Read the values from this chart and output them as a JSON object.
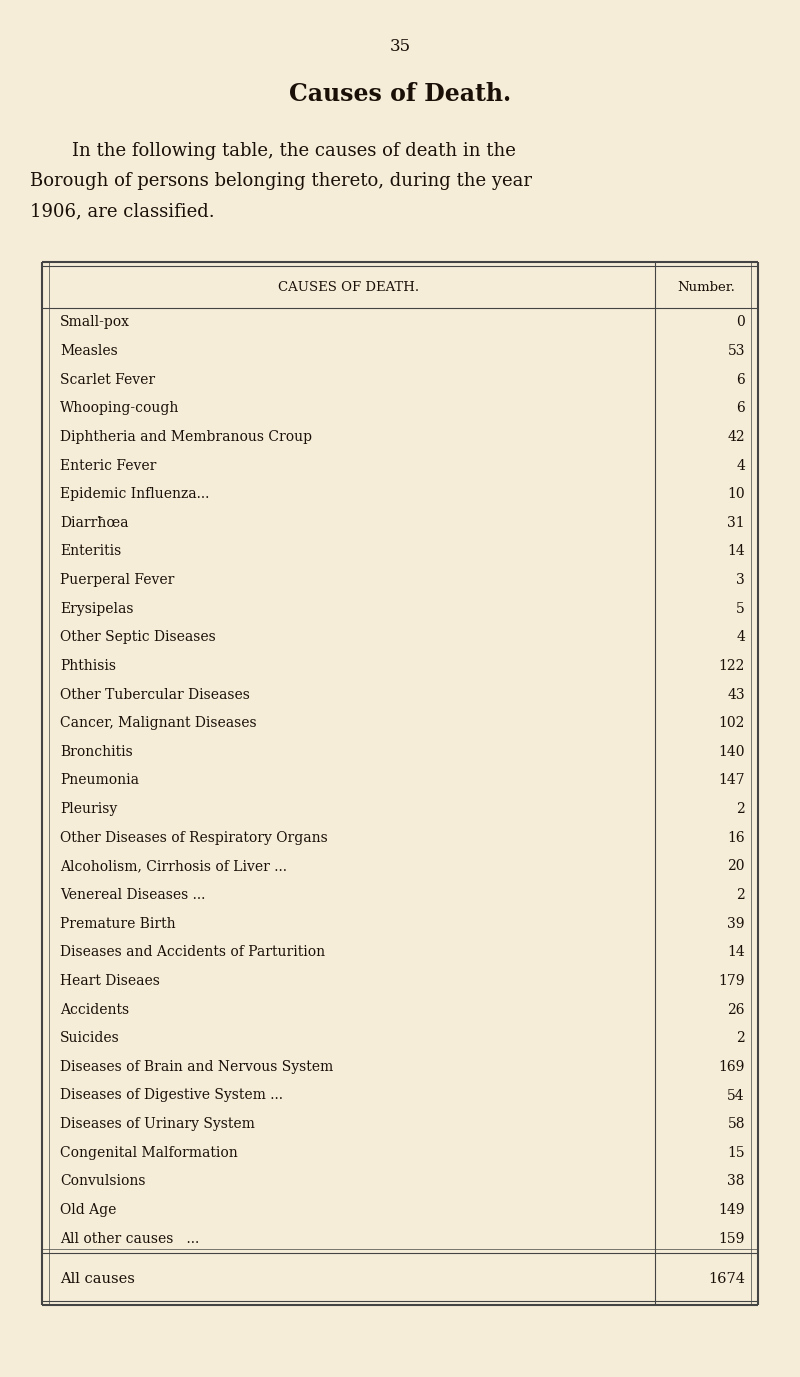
{
  "page_number": "35",
  "title": "Causes of Death.",
  "intro_text_line1": "In the following table, the causes of death in the",
  "intro_text_line2": "Borough of persons belonging thereto, during the year",
  "intro_text_line3": "1906, are classified.",
  "col_header_left": "CAUSES OF DEATH.",
  "col_header_right": "Number.",
  "rows": [
    {
      "cause": "Small-pox",
      "trail": "   ...          ...          ...",
      "tail": "  .",
      "number": "0"
    },
    {
      "cause": "Measles",
      "trail": "      ...          ...          ...",
      "tail": "  .",
      "number": "53"
    },
    {
      "cause": "Scarlet Fever",
      "trail": "    ...          ...          ...",
      "tail": "",
      "number": "6"
    },
    {
      "cause": "Whooping-cough",
      "trail": "  ...          ...          ...",
      "tail": "  .",
      "number": "6"
    },
    {
      "cause": "Diphtheria and Membranous Croup",
      "trail": "     ...",
      "tail": "  .",
      "number": "42"
    },
    {
      "cause": "Enteric Fever",
      "trail": "    ...          ...          ...",
      "tail": "  .",
      "number": "4"
    },
    {
      "cause": "Epidemic Influenza...",
      "trail": "         ...          ...",
      "tail": "  .",
      "number": "10"
    },
    {
      "cause": "Diarrħœa",
      "trail": "       ...          ...          ...",
      "tail": " ...",
      "number": "31"
    },
    {
      "cause": "Enteritis",
      "trail": "      ...          ...          ...",
      "tail": " ...",
      "number": "14"
    },
    {
      "cause": "Puerperal Fever",
      "trail": "  ...          ...          ...",
      "tail": " ...",
      "number": "3"
    },
    {
      "cause": "Erysipelas",
      "trail": "     ...          ...          ...",
      "tail": "",
      "number": "5"
    },
    {
      "cause": "Other Septic Diseases",
      "trail": "  ...          ...",
      "tail": "",
      "number": "4"
    },
    {
      "cause": "Phthisis",
      "trail": "       ...          ...          ...",
      "tail": "  .",
      "number": "122"
    },
    {
      "cause": "Other Tubercular Diseases",
      "trail": "   ...          ...",
      "tail": "",
      "number": "43"
    },
    {
      "cause": "Cancer, Malignant Diseases",
      "trail": "  ...",
      "tail": "  .",
      "number": "102"
    },
    {
      "cause": "Bronchitis",
      "trail": "     ...          ...          ...",
      "tail": "  .",
      "number": "140"
    },
    {
      "cause": "Pneumonia",
      "trail": "      ...          ...          ...",
      "tail": " ...",
      "number": "147"
    },
    {
      "cause": "Pleurisy",
      "trail": "       ...          ...          ...",
      "tail": " ...",
      "number": "2"
    },
    {
      "cause": "Other Diseases of Respiratory Organs",
      "trail": "   ...",
      "tail": " ...",
      "number": "16"
    },
    {
      "cause": "Alcoholism, Cirrhosis of Liver ...",
      "trail": "     ...          ...",
      "tail": " ...",
      "number": "20"
    },
    {
      "cause": "Venereal Diseases ...",
      "trail": "      ...          ...",
      "tail": " ...",
      "number": "2"
    },
    {
      "cause": "Premature Birth",
      "trail": "   ...          ...          ...",
      "tail": " ...",
      "number": "39"
    },
    {
      "cause": "Diseases and Accidents of Parturition",
      "trail": "   ...",
      "tail": " ...",
      "number": "14"
    },
    {
      "cause": "Heart Disea​es",
      "trail": "    ...          ...          ...",
      "tail": " ...",
      "number": "179"
    },
    {
      "cause": "Accidents",
      "trail": "      ...          ...          ...",
      "tail": " ...",
      "number": "26"
    },
    {
      "cause": "Suicides",
      "trail": "       ...          ...          ...",
      "tail": " ...",
      "number": "2"
    },
    {
      "cause": "Diseases of Brain and Nervous System",
      "trail": "   ...",
      "tail": "  .",
      "number": "169"
    },
    {
      "cause": "Diseases of Digestive System ...",
      "trail": "     ...          ...",
      "tail": " ...",
      "number": "54"
    },
    {
      "cause": "Diseases of Urinary System",
      "trail": "   ...          ...",
      "tail": " ...",
      "number": "58"
    },
    {
      "cause": "Congenital Malformation",
      "trail": "    ...          ...",
      "tail": " ...",
      "number": "15"
    },
    {
      "cause": "Convulsions",
      "trail": "     ...          ...          ...",
      "tail": " ...",
      "number": "38"
    },
    {
      "cause": "Old Age",
      "trail": "        ...          ...          ...",
      "tail": " ...",
      "number": "149"
    },
    {
      "cause": "All other causes   ...",
      "trail": "  ♯  ...          ...",
      "tail": " ...",
      "number": "159"
    }
  ],
  "total_cause": "All causes",
  "total_trail": "          ...          ...          ...",
  "total_tail": " ...",
  "total_number": "1674",
  "bg_color": "#f5edd8",
  "text_color": "#1a1008",
  "table_line_color": "#444444",
  "font_size_title": 17,
  "font_size_page": 12,
  "font_size_intro": 13,
  "font_size_header": 9.5,
  "font_size_row": 10,
  "font_size_total": 10.5
}
